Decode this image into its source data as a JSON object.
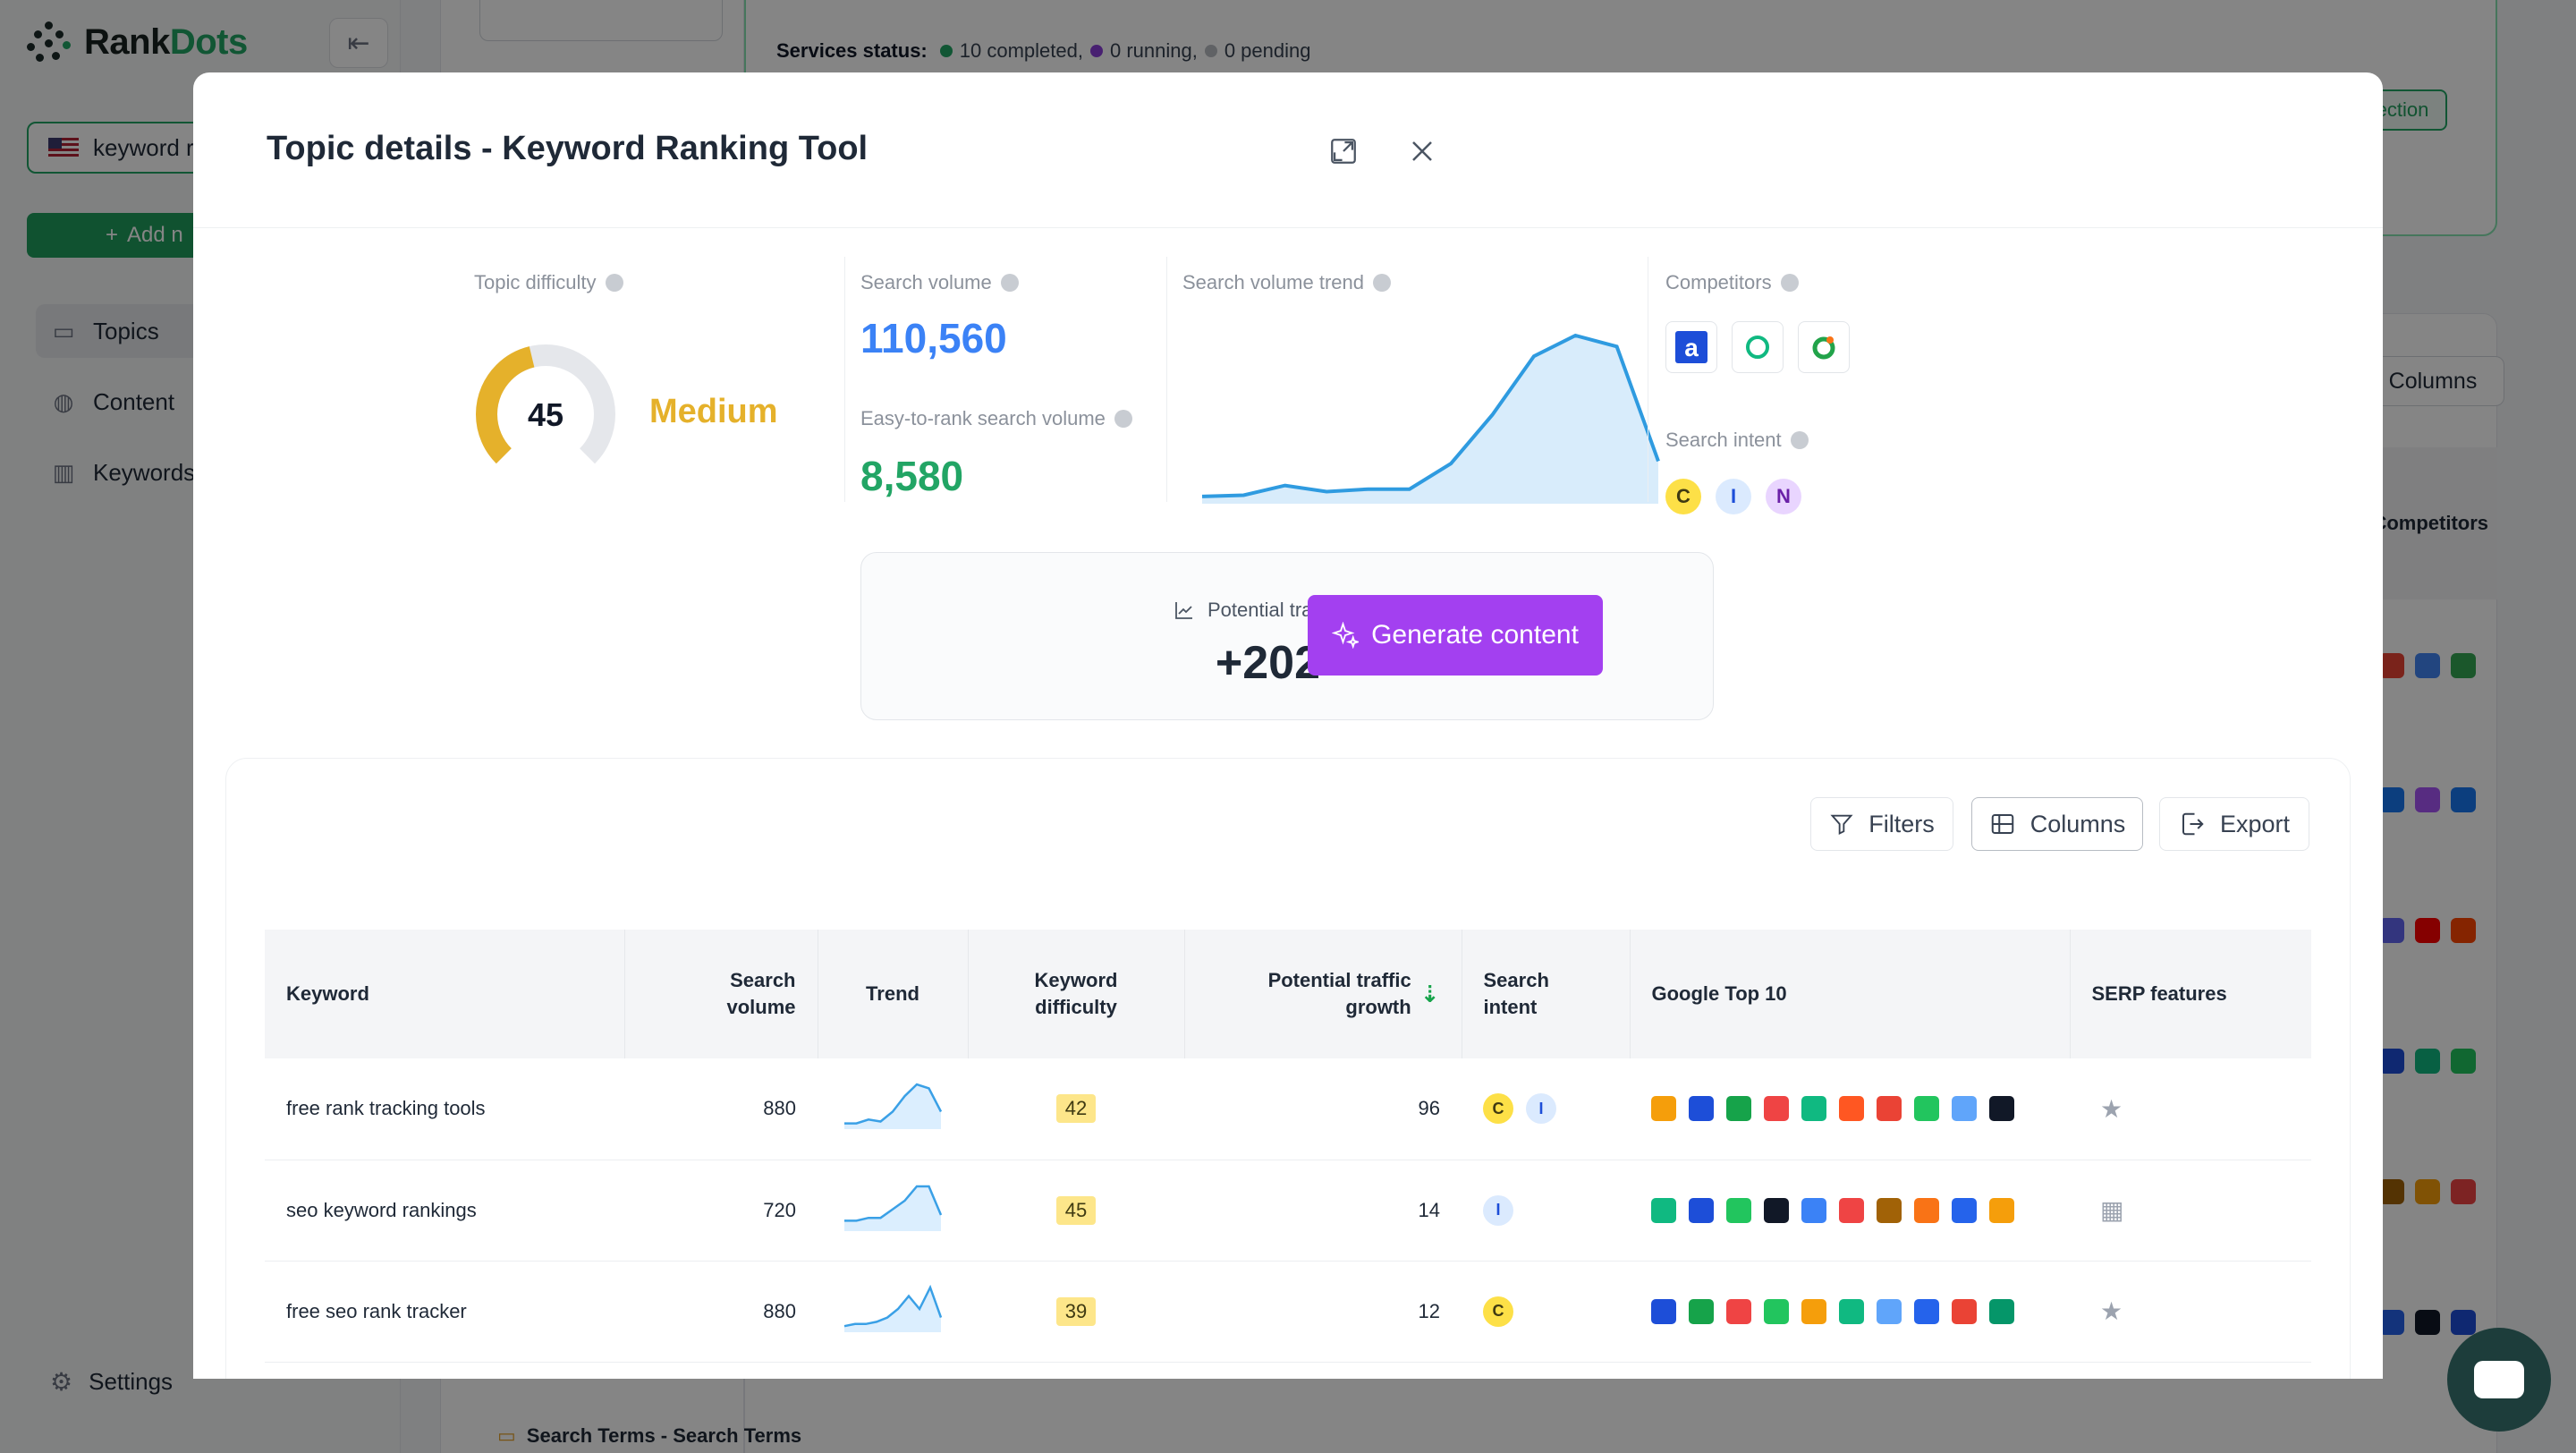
{
  "app": {
    "brand_part1": "Rank",
    "brand_part2": "Dots",
    "project_label": "keyword r",
    "add_label": "Add n",
    "nav": [
      {
        "label": "Topics",
        "icon": "folder-icon"
      },
      {
        "label": "Content",
        "icon": "globe-icon"
      },
      {
        "label": "Keywords",
        "icon": "bar-chart-icon"
      }
    ],
    "settings_label": "Settings",
    "status": {
      "label": "Services status:",
      "completed": "10 completed,",
      "running": "0 running,",
      "pending": "0 pending"
    },
    "section_btn": "ection",
    "columns_btn": "Columns",
    "competitors_header": "Competitors",
    "footer_topic": "Search Terms - Search Terms"
  },
  "modal": {
    "title": "Topic details - Keyword Ranking Tool",
    "difficulty": {
      "label": "Topic difficulty",
      "value": 45,
      "value_text": "45",
      "level": "Medium"
    },
    "volume": {
      "label": "Search volume",
      "value": "110,560"
    },
    "easy": {
      "label": "Easy-to-rank search volume",
      "value": "8,580"
    },
    "trend": {
      "label": "Search volume trend",
      "values": [
        3,
        4,
        12,
        7,
        9,
        9,
        30,
        70,
        118,
        135,
        126,
        32
      ]
    },
    "competitors": {
      "label": "Competitors",
      "icons": [
        "a-logo-icon",
        "ring-logo-icon",
        "swirl-logo-icon"
      ]
    },
    "intent": {
      "label": "Search intent",
      "badges": [
        "C",
        "I",
        "N"
      ]
    },
    "growth": {
      "label": "Potential traffic growth",
      "value": "+202"
    },
    "generate_label": "Generate content",
    "toolbar": {
      "filters": "Filters",
      "columns": "Columns",
      "export": "Export"
    },
    "table": {
      "headers": {
        "keyword": "Keyword",
        "volume_1": "Search",
        "volume_2": "volume",
        "trend": "Trend",
        "difficulty_1": "Keyword",
        "difficulty_2": "difficulty",
        "growth_1": "Potential traffic",
        "growth_2": "growth",
        "intent_1": "Search",
        "intent_2": "intent",
        "top10": "Google Top 10",
        "serp": "SERP features"
      },
      "rows": [
        {
          "keyword": "free rank tracking tools",
          "volume": "880",
          "trend": [
            2,
            2,
            4,
            3,
            8,
            16,
            22,
            20,
            8
          ],
          "difficulty": "42",
          "growth": "96",
          "intent": [
            "C",
            "I"
          ],
          "serp": "star-icon",
          "top10": [
            "#f59e0b",
            "#1d4ed8",
            "#16a34a",
            "#ef4444",
            "#10b981",
            "#ff5722",
            "#ea4335",
            "#22c55e",
            "#60a5fa",
            "#111827"
          ]
        },
        {
          "keyword": "seo keyword rankings",
          "volume": "720",
          "trend": [
            3,
            3,
            4,
            4,
            7,
            10,
            15,
            15,
            5
          ],
          "difficulty": "45",
          "growth": "14",
          "intent": [
            "I"
          ],
          "serp": "table-icon",
          "top10": [
            "#10b981",
            "#1d4ed8",
            "#22c55e",
            "#111827",
            "#3b82f6",
            "#ef4444",
            "#a16207",
            "#f97316",
            "#2563eb",
            "#f59e0b"
          ]
        },
        {
          "keyword": "free seo rank tracker",
          "volume": "880",
          "trend": [
            2,
            3,
            3,
            4,
            6,
            10,
            16,
            10,
            20,
            6
          ],
          "difficulty": "39",
          "growth": "12",
          "intent": [
            "C"
          ],
          "serp": "star-icon",
          "top10": [
            "#1d4ed8",
            "#16a34a",
            "#ef4444",
            "#22c55e",
            "#f59e0b",
            "#10b981",
            "#60a5fa",
            "#2563eb",
            "#ea4335",
            "#059669"
          ]
        }
      ]
    }
  }
}
